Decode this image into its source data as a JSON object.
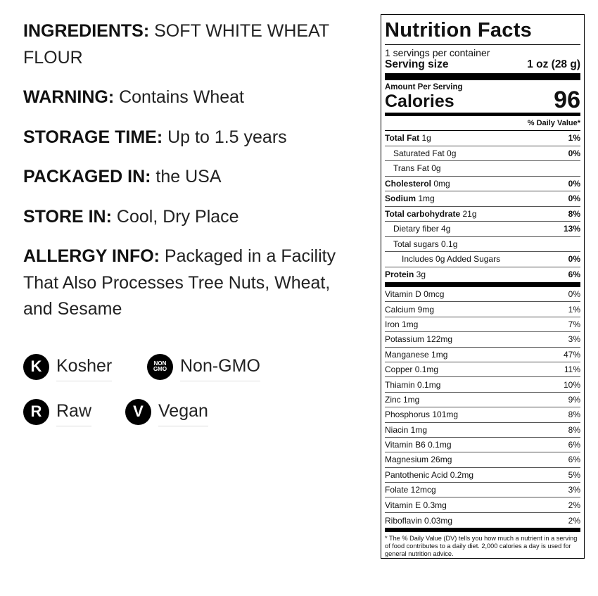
{
  "left": {
    "paragraphs": [
      {
        "label": "INGREDIENTS:",
        "text": " SOFT WHITE WHEAT FLOUR"
      },
      {
        "label": "WARNING:",
        "text": " Contains Wheat"
      },
      {
        "label": "STORAGE TIME:",
        "text": " Up to 1.5 years"
      },
      {
        "label": "PACKAGED IN:",
        "text": " the USA"
      },
      {
        "label": "STORE IN:",
        "text": " Cool, Dry Place"
      },
      {
        "label": "ALLERGY INFO:",
        "text": " Packaged in a Facility That Also Processes Tree Nuts, Wheat, and Sesame"
      }
    ],
    "badges": [
      {
        "icon": "K",
        "label": "Kosher"
      },
      {
        "icon_top": "NON",
        "icon_bottom": "GMO",
        "label": "Non-GMO"
      },
      {
        "icon": "R",
        "label": "Raw"
      },
      {
        "icon": "V",
        "label": "Vegan"
      }
    ]
  },
  "label": {
    "title": "Nutrition Facts",
    "servings": "1 servings per container",
    "serving_size_label": "Serving size",
    "serving_size": "1 oz (28 g)",
    "amount_per_serving": "Amount Per Serving",
    "calories_label": "Calories",
    "calories": "96",
    "dv_header": "% Daily Value*",
    "nutrients": [
      {
        "name": "Total Fat",
        "amount": " 1g",
        "dv": "1%"
      },
      {
        "name": "Saturated Fat 0g",
        "dv": "0%"
      },
      {
        "name": "Trans Fat 0g",
        "dv": ""
      },
      {
        "name": "Cholesterol",
        "amount": " 0mg",
        "dv": "0%"
      },
      {
        "name": "Sodium",
        "amount": " 1mg",
        "dv": "0%"
      },
      {
        "name": "Total carbohydrate",
        "amount": " 21g",
        "dv": "8%"
      },
      {
        "name": "Dietary fiber 4g",
        "dv": "13%"
      },
      {
        "name": "Total sugars 0.1g",
        "dv": ""
      },
      {
        "name": "Includes 0g Added Sugars",
        "dv": "0%"
      },
      {
        "name": "Protein",
        "amount": " 3g",
        "dv": "6%"
      }
    ],
    "vitamins": [
      {
        "name": "Vitamin D 0mcg",
        "dv": "0%"
      },
      {
        "name": "Calcium 9mg",
        "dv": "1%"
      },
      {
        "name": "Iron 1mg",
        "dv": "7%"
      },
      {
        "name": "Potassium 122mg",
        "dv": "3%"
      },
      {
        "name": "Manganese 1mg",
        "dv": "47%"
      },
      {
        "name": "Copper 0.1mg",
        "dv": "11%"
      },
      {
        "name": "Thiamin 0.1mg",
        "dv": "10%"
      },
      {
        "name": "Zinc 1mg",
        "dv": "9%"
      },
      {
        "name": "Phosphorus 101mg",
        "dv": "8%"
      },
      {
        "name": "Niacin 1mg",
        "dv": "8%"
      },
      {
        "name": "Vitamin B6 0.1mg",
        "dv": "6%"
      },
      {
        "name": "Magnesium 26mg",
        "dv": "6%"
      },
      {
        "name": "Pantothenic Acid 0.2mg",
        "dv": "5%"
      },
      {
        "name": "Folate 12mcg",
        "dv": "3%"
      },
      {
        "name": "Vitamin E 0.3mg",
        "dv": "2%"
      },
      {
        "name": "Riboflavin 0.03mg",
        "dv": "2%"
      }
    ],
    "footnote": "* The % Daily Value (DV) tells you how much a nutrient in a serving of food contributes to a daily diet. 2,000 calories a day is used for general nutrition advice."
  }
}
